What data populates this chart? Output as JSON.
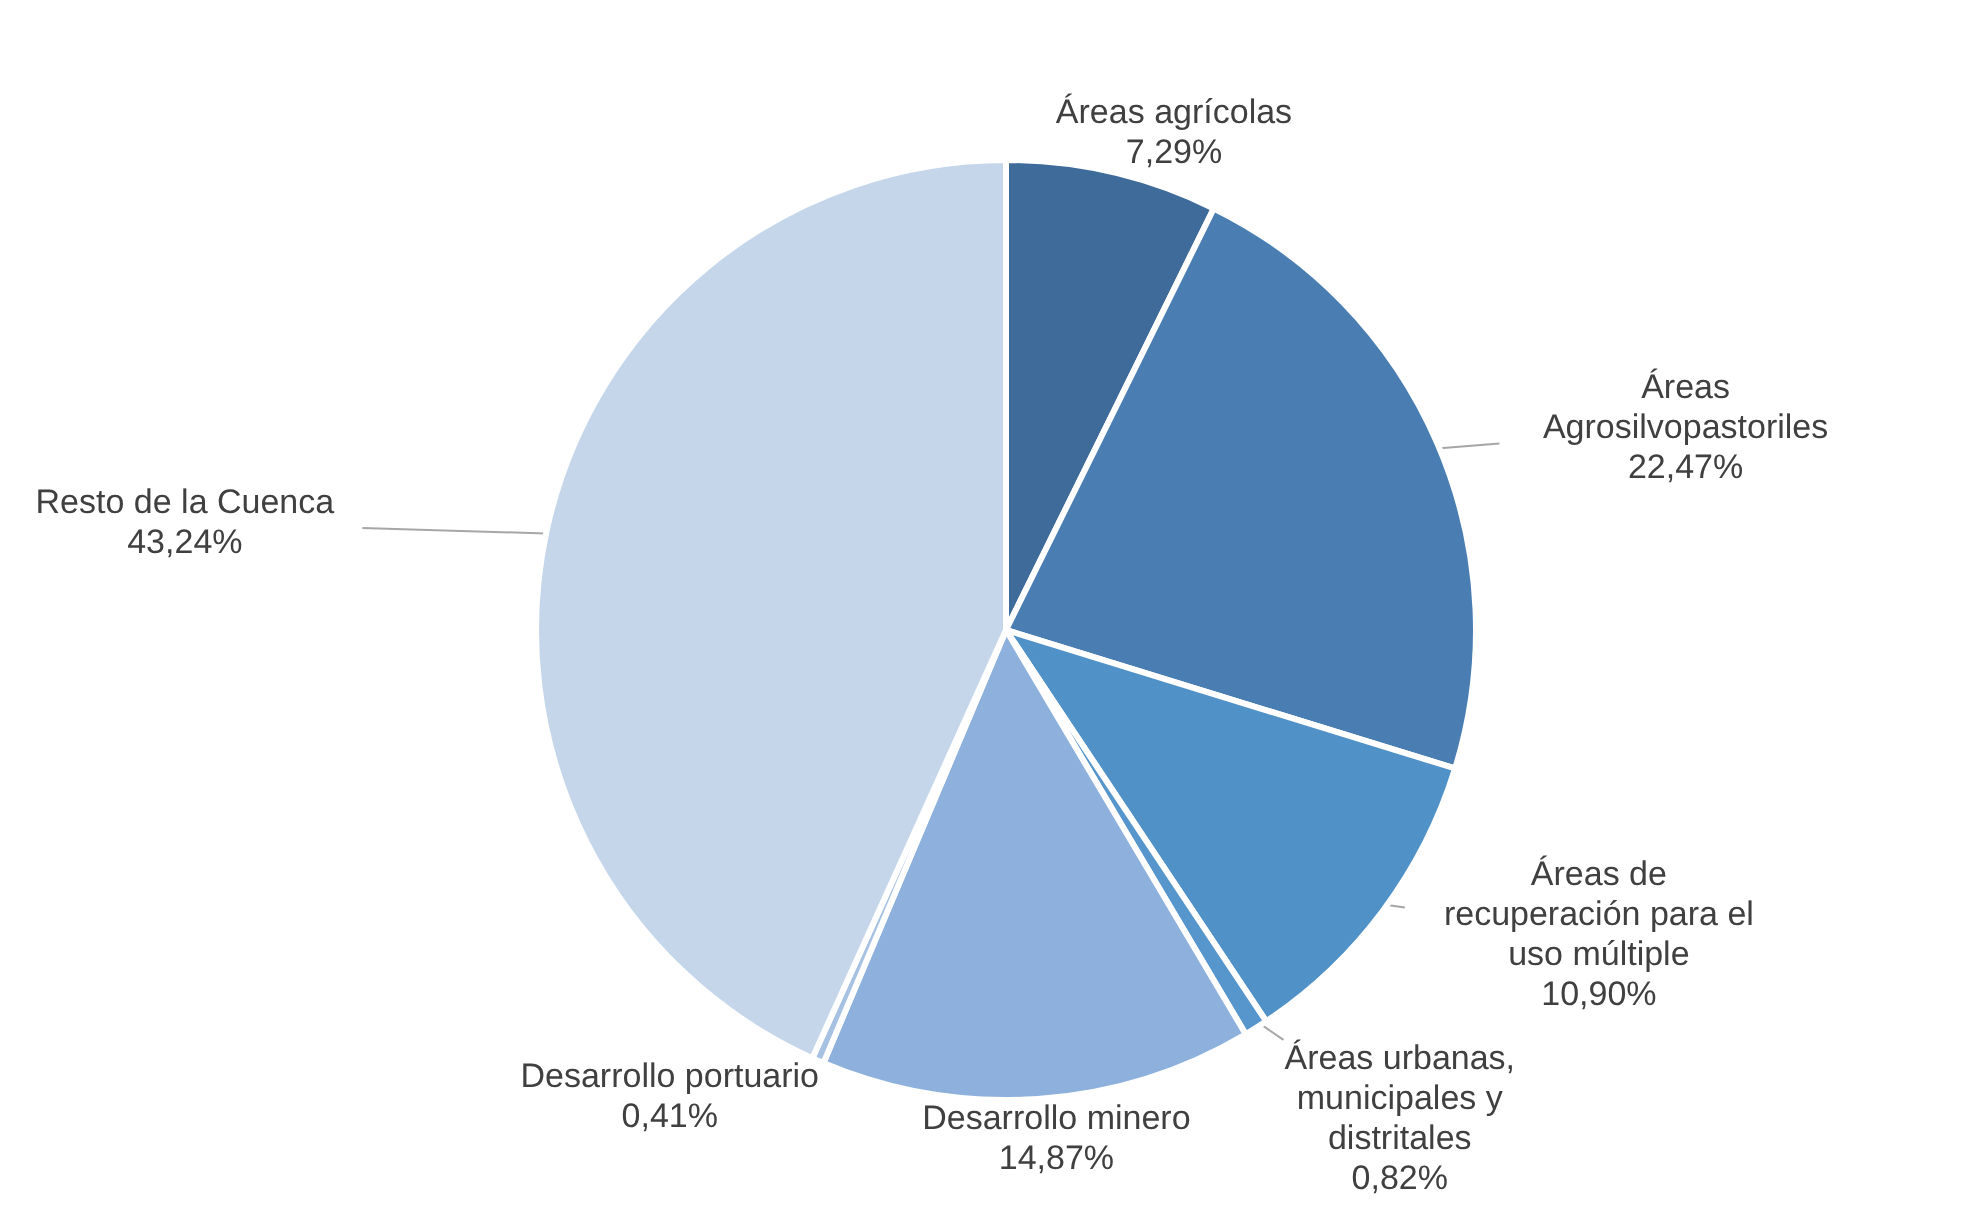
{
  "chart_data": {
    "type": "pie",
    "value_labels": [
      "7,29%",
      "22,47%",
      "10,90%",
      "0,82%",
      "14,87%",
      "0,41%",
      "43,24%"
    ],
    "categories": [
      "Áreas agrícolas",
      "Áreas Agrosilvopastoriles",
      "Áreas de recuperación para el uso múltiple",
      "Áreas urbanas, municipales y distritales",
      "Desarrollo minero",
      "Desarrollo portuario",
      "Resto de la Cuenca"
    ],
    "values": [
      7.29,
      22.47,
      10.9,
      0.82,
      14.87,
      0.41,
      43.24
    ],
    "colors": [
      "#3e6b9a",
      "#4a7eb3",
      "#5091c8",
      "#5796cc",
      "#8db1dc",
      "#a7c1e2",
      "#c5d6eb"
    ]
  }
}
